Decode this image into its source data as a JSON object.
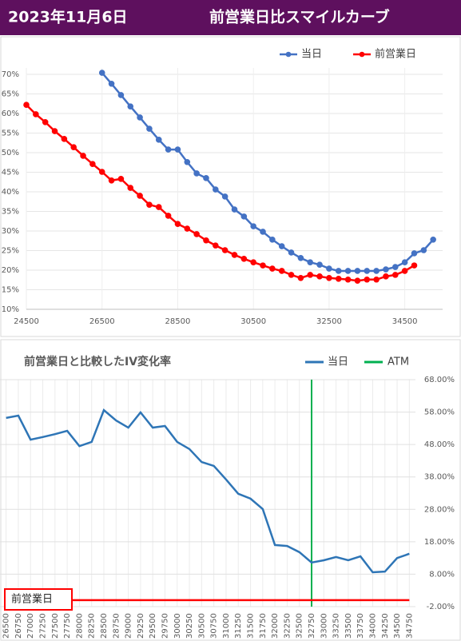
{
  "header": {
    "date": "2023年11月6日",
    "title": "前営業日比スマイルカーブ"
  },
  "chart_data": [
    {
      "type": "line",
      "grid": true,
      "xlim": [
        24500,
        35500
      ],
      "xticks": [
        24500,
        26500,
        28500,
        30500,
        32500,
        34500
      ],
      "ylim": [
        10,
        70
      ],
      "yticks": [
        {
          "value": 10,
          "label": "10%"
        },
        {
          "value": 15,
          "label": "15%"
        },
        {
          "value": 20,
          "label": "20%"
        },
        {
          "value": 25,
          "label": "25%"
        },
        {
          "value": 30,
          "label": "30%"
        },
        {
          "value": 35,
          "label": "35%"
        },
        {
          "value": 40,
          "label": "40%"
        },
        {
          "value": 45,
          "label": "45%"
        },
        {
          "value": 50,
          "label": "50%"
        },
        {
          "value": 55,
          "label": "55%"
        },
        {
          "value": 60,
          "label": "60%"
        },
        {
          "value": 65,
          "label": "65%"
        },
        {
          "value": 70,
          "label": "70%"
        }
      ],
      "series": [
        {
          "name": "当日",
          "color": "#4472c4",
          "x": [
            26500,
            26750,
            27000,
            27250,
            27500,
            27750,
            28000,
            28250,
            28500,
            28750,
            29000,
            29250,
            29500,
            29750,
            30000,
            30250,
            30500,
            30750,
            31000,
            31250,
            31500,
            31750,
            32000,
            32250,
            32500,
            32750,
            33000,
            33250,
            33500,
            33750,
            34000,
            34250,
            34500,
            34750,
            35000,
            35250
          ],
          "values": [
            70.4,
            67.6,
            64.7,
            61.8,
            59.0,
            56.1,
            53.3,
            50.8,
            50.8,
            47.6,
            44.7,
            43.5,
            40.6,
            38.8,
            35.5,
            33.7,
            31.2,
            29.8,
            27.8,
            26.1,
            24.5,
            23.1,
            22.0,
            21.4,
            20.4,
            19.8,
            19.8,
            19.8,
            19.8,
            19.8,
            20.2,
            20.8,
            22.0,
            24.3,
            25.1,
            27.8
          ]
        },
        {
          "name": "前営業日",
          "color": "#ff0000",
          "x": [
            24500,
            24750,
            25000,
            25250,
            25500,
            25750,
            26000,
            26250,
            26500,
            26750,
            27000,
            27250,
            27500,
            27750,
            28000,
            28250,
            28500,
            28750,
            29000,
            29250,
            29500,
            29750,
            30000,
            30250,
            30500,
            30750,
            31000,
            31250,
            31500,
            31750,
            32000,
            32250,
            32500,
            32750,
            33000,
            33250,
            33500,
            33750,
            34000,
            34250,
            34500,
            34750
          ],
          "values": [
            62.2,
            59.8,
            57.8,
            55.5,
            53.5,
            51.4,
            49.2,
            47.1,
            45.1,
            42.9,
            43.3,
            41.0,
            39.0,
            36.7,
            36.1,
            33.9,
            31.8,
            30.6,
            29.2,
            27.6,
            26.3,
            25.1,
            23.9,
            22.9,
            22.0,
            21.2,
            20.4,
            19.8,
            18.8,
            18.0,
            18.8,
            18.4,
            18.0,
            17.8,
            17.6,
            17.3,
            17.6,
            17.6,
            18.4,
            18.8,
            19.8,
            21.2
          ]
        }
      ]
    },
    {
      "type": "line",
      "title": "前営業日と比較したIV変化率",
      "grid": true,
      "categories": [
        "26500",
        "26750",
        "27000",
        "27250",
        "27500",
        "27750",
        "28000",
        "28250",
        "28500",
        "28750",
        "29000",
        "29250",
        "29500",
        "29750",
        "30000",
        "30250",
        "30500",
        "30750",
        "31000",
        "31250",
        "31500",
        "31750",
        "32000",
        "32250",
        "32500",
        "32750",
        "33000",
        "33250",
        "33500",
        "33750",
        "34000",
        "34250",
        "34500",
        "34750"
      ],
      "ylim": [
        -2,
        68
      ],
      "yticks": [
        {
          "value": -2,
          "label": "-2.00%"
        },
        {
          "value": 8,
          "label": "8.00%"
        },
        {
          "value": 18,
          "label": "18.00%"
        },
        {
          "value": 28,
          "label": "28.00%"
        },
        {
          "value": 38,
          "label": "38.00%"
        },
        {
          "value": 48,
          "label": "48.00%"
        },
        {
          "value": 58,
          "label": "58.00%"
        },
        {
          "value": 68,
          "label": "68.00%"
        }
      ],
      "series": [
        {
          "name": "当日",
          "color": "#2e75b6",
          "values": [
            56.2,
            56.9,
            49.5,
            50.3,
            51.2,
            52.2,
            47.5,
            48.8,
            58.6,
            55.4,
            53.2,
            57.9,
            53.2,
            53.7,
            48.8,
            46.6,
            42.6,
            41.4,
            37.2,
            32.8,
            31.3,
            28.1,
            17.0,
            16.7,
            14.8,
            11.6,
            12.3,
            13.3,
            12.3,
            13.5,
            8.6,
            8.8,
            13.0,
            14.3
          ]
        },
        {
          "name": "前営業日",
          "color": "#ff0000",
          "values": [
            0,
            0,
            0,
            0,
            0,
            0,
            0,
            0,
            0,
            0,
            0,
            0,
            0,
            0,
            0,
            0,
            0,
            0,
            0,
            0,
            0,
            0,
            0,
            0,
            0,
            0,
            0,
            0,
            0,
            0,
            0,
            0,
            0,
            0
          ]
        }
      ],
      "reference_line": {
        "name": "ATM",
        "color": "#00b050",
        "x": "32750"
      }
    }
  ]
}
